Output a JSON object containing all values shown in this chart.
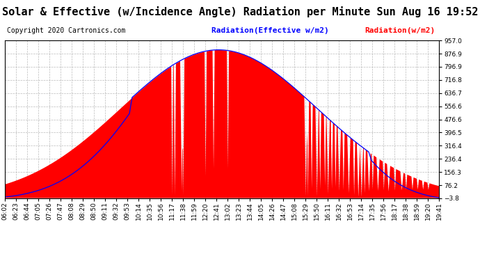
{
  "title": "Solar & Effective (w/Incidence Angle) Radiation per Minute Sun Aug 16 19:52",
  "copyright": "Copyright 2020 Cartronics.com",
  "legend_blue": "Radiation(Effective w/m2)",
  "legend_red": "Radiation(w/m2)",
  "background_color": "#ffffff",
  "plot_bg_color": "#ffffff",
  "grid_color": "#aaaaaa",
  "red_color": "#ff0000",
  "blue_color": "#0000ff",
  "yticks": [
    957.0,
    876.9,
    796.9,
    716.8,
    636.7,
    556.6,
    476.6,
    396.5,
    316.4,
    236.4,
    156.3,
    76.2,
    -3.8
  ],
  "ymin": -3.8,
  "ymax": 957.0,
  "title_fontsize": 11,
  "copyright_fontsize": 7,
  "legend_fontsize": 8,
  "tick_fontsize": 6.5
}
